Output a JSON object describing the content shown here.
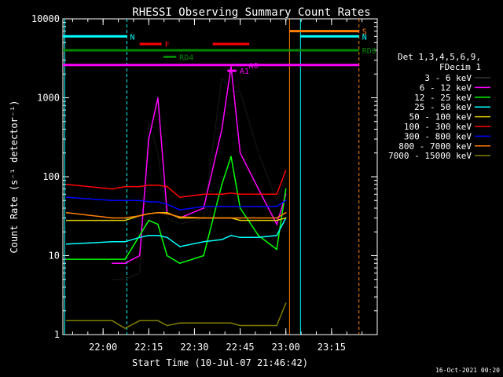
{
  "chart_data": {
    "type": "line",
    "title": "RHESSI Observing Summary Count Rates",
    "xlabel": "Start Time (10-Jul-07 21:46:42)",
    "ylabel": "Count Rate (s⁻¹ detector⁻¹)",
    "y_scale": "log",
    "ylim": [
      1,
      10000
    ],
    "xlim_minutes": [
      21.78,
      23.5
    ],
    "x_ticks": [
      "22:00",
      "22:15",
      "22:30",
      "22:45",
      "23:00",
      "23:15"
    ],
    "y_ticks": [
      "1",
      "10",
      "100",
      "1000",
      "10000"
    ],
    "footer": "16-Oct-2021 00:20",
    "legend_header": [
      "Det 1,3,4,5,6,9,",
      "FDecim 1"
    ],
    "colors": {
      "background": "#000000",
      "axes": "#ffffff",
      "attenuator": "#ff7f00",
      "night": "#00ffff",
      "saa": "#00ffff",
      "flare": "#ff0000",
      "rd_green": "#008800",
      "attenuator_label": "#ff00ff"
    },
    "series": [
      {
        "name": "3 - 6 keV",
        "color": "#000000",
        "points": [
          [
            22.05,
            5
          ],
          [
            22.12,
            5
          ],
          [
            22.2,
            6
          ],
          [
            22.25,
            500
          ],
          [
            22.3,
            200
          ],
          [
            22.35,
            30
          ],
          [
            22.42,
            25
          ],
          [
            22.55,
            30
          ],
          [
            22.65,
            1800
          ],
          [
            22.7,
            1200
          ],
          [
            22.75,
            1200
          ],
          [
            22.85,
            200
          ],
          [
            22.95,
            50
          ],
          [
            23.0,
            100
          ]
        ]
      },
      {
        "name": "6 - 12 keV",
        "color": "#ff00ff",
        "points": [
          [
            22.05,
            8
          ],
          [
            22.12,
            8
          ],
          [
            22.2,
            10
          ],
          [
            22.25,
            300
          ],
          [
            22.3,
            1000
          ],
          [
            22.35,
            35
          ],
          [
            22.42,
            30
          ],
          [
            22.55,
            40
          ],
          [
            22.65,
            400
          ],
          [
            22.7,
            2500
          ],
          [
            22.75,
            200
          ],
          [
            22.85,
            70
          ],
          [
            22.95,
            25
          ],
          [
            23.0,
            60
          ]
        ]
      },
      {
        "name": "12 - 25 keV",
        "color": "#00ff00",
        "points": [
          [
            21.8,
            9
          ],
          [
            22.05,
            9
          ],
          [
            22.12,
            9
          ],
          [
            22.2,
            18
          ],
          [
            22.25,
            28
          ],
          [
            22.3,
            25
          ],
          [
            22.35,
            10
          ],
          [
            22.42,
            8
          ],
          [
            22.55,
            10
          ],
          [
            22.65,
            80
          ],
          [
            22.7,
            180
          ],
          [
            22.75,
            40
          ],
          [
            22.85,
            18
          ],
          [
            22.95,
            12
          ],
          [
            23.0,
            70
          ]
        ]
      },
      {
        "name": "25 - 50 keV",
        "color": "#00ffff",
        "points": [
          [
            21.8,
            14
          ],
          [
            22.05,
            15
          ],
          [
            22.12,
            15
          ],
          [
            22.2,
            17
          ],
          [
            22.25,
            18
          ],
          [
            22.3,
            18
          ],
          [
            22.35,
            17
          ],
          [
            22.42,
            13
          ],
          [
            22.55,
            15
          ],
          [
            22.65,
            16
          ],
          [
            22.7,
            18
          ],
          [
            22.75,
            17
          ],
          [
            22.85,
            17
          ],
          [
            22.95,
            18
          ],
          [
            23.0,
            30
          ]
        ]
      },
      {
        "name": "50 - 100 keV",
        "color": "#ddcc00",
        "points": [
          [
            21.8,
            28
          ],
          [
            22.05,
            28
          ],
          [
            22.12,
            28
          ],
          [
            22.2,
            32
          ],
          [
            22.25,
            34
          ],
          [
            22.3,
            35
          ],
          [
            22.35,
            35
          ],
          [
            22.42,
            30
          ],
          [
            22.55,
            30
          ],
          [
            22.65,
            30
          ],
          [
            22.7,
            30
          ],
          [
            22.75,
            28
          ],
          [
            22.85,
            28
          ],
          [
            22.95,
            28
          ],
          [
            23.0,
            30
          ]
        ]
      },
      {
        "name": "100 - 300 keV",
        "color": "#ff0000",
        "points": [
          [
            21.8,
            80
          ],
          [
            22.05,
            70
          ],
          [
            22.12,
            75
          ],
          [
            22.2,
            75
          ],
          [
            22.25,
            78
          ],
          [
            22.3,
            78
          ],
          [
            22.35,
            75
          ],
          [
            22.42,
            55
          ],
          [
            22.55,
            60
          ],
          [
            22.65,
            60
          ],
          [
            22.7,
            62
          ],
          [
            22.75,
            60
          ],
          [
            22.85,
            60
          ],
          [
            22.95,
            60
          ],
          [
            23.0,
            120
          ]
        ]
      },
      {
        "name": "300 - 800 keV",
        "color": "#0000ff",
        "points": [
          [
            21.8,
            55
          ],
          [
            22.05,
            50
          ],
          [
            22.12,
            50
          ],
          [
            22.2,
            50
          ],
          [
            22.25,
            48
          ],
          [
            22.3,
            48
          ],
          [
            22.35,
            45
          ],
          [
            22.42,
            38
          ],
          [
            22.55,
            42
          ],
          [
            22.65,
            42
          ],
          [
            22.7,
            42
          ],
          [
            22.75,
            42
          ],
          [
            22.85,
            42
          ],
          [
            22.95,
            42
          ],
          [
            23.0,
            50
          ]
        ]
      },
      {
        "name": "800 - 7000 keV",
        "color": "#ff7f00",
        "points": [
          [
            21.8,
            35
          ],
          [
            22.05,
            30
          ],
          [
            22.12,
            30
          ],
          [
            22.2,
            32
          ],
          [
            22.25,
            34
          ],
          [
            22.3,
            35
          ],
          [
            22.35,
            34
          ],
          [
            22.42,
            31
          ],
          [
            22.55,
            30
          ],
          [
            22.65,
            30
          ],
          [
            22.7,
            30
          ],
          [
            22.75,
            30
          ],
          [
            22.85,
            30
          ],
          [
            22.95,
            30
          ],
          [
            23.0,
            35
          ]
        ]
      },
      {
        "name": "7000 - 15000 keV",
        "color": "#808000",
        "points": [
          [
            21.8,
            1.5
          ],
          [
            22.05,
            1.5
          ],
          [
            22.12,
            1.2
          ],
          [
            22.2,
            1.5
          ],
          [
            22.25,
            1.5
          ],
          [
            22.3,
            1.5
          ],
          [
            22.35,
            1.3
          ],
          [
            22.42,
            1.4
          ],
          [
            22.55,
            1.4
          ],
          [
            22.65,
            1.4
          ],
          [
            22.7,
            1.4
          ],
          [
            22.75,
            1.3
          ],
          [
            22.85,
            1.3
          ],
          [
            22.95,
            1.3
          ],
          [
            23.0,
            2.5
          ]
        ]
      }
    ],
    "state_bars": [
      {
        "label": "N",
        "color": "#00ffff",
        "level": 6000,
        "segments": [
          [
            21.78,
            22.13
          ]
        ]
      },
      {
        "label": "N",
        "color": "#00ffff",
        "level": 6000,
        "segments": [
          [
            23.08,
            23.4
          ]
        ]
      },
      {
        "label": "S",
        "color": "#ff7f00",
        "level": 7000,
        "segments": [
          [
            23.02,
            23.4
          ]
        ]
      },
      {
        "label": "F",
        "color": "#ff0000",
        "level": 4800,
        "segments": [
          [
            22.2,
            22.32
          ],
          [
            22.6,
            22.8
          ]
        ]
      },
      {
        "label": "RD0",
        "color": "#008800",
        "level": 4000,
        "segments": [
          [
            21.78,
            23.4
          ]
        ]
      },
      {
        "label": "RD4",
        "color": "#008800",
        "level": 3300,
        "segments": [
          [
            22.33,
            22.4
          ]
        ]
      },
      {
        "label": "",
        "color": "#ff00ff",
        "level": 2600,
        "segments": [
          [
            21.78,
            23.4
          ]
        ]
      },
      {
        "label": "A1",
        "color": "#ff00ff",
        "level": 2200,
        "segments": [
          [
            22.68,
            22.73
          ]
        ]
      },
      {
        "label": "A0",
        "color": "#ff00ff",
        "level": 2600,
        "segments": [
          [
            22.73,
            22.78
          ]
        ]
      }
    ],
    "vlines": [
      {
        "label": "night_start",
        "color": "#00ffff",
        "x": 21.79,
        "style": "solid"
      },
      {
        "label": "night_end",
        "color": "#00ffff",
        "x": 22.13,
        "style": "dashed"
      },
      {
        "label": "saa_start",
        "color": "#ff7f00",
        "x": 23.02,
        "style": "solid"
      },
      {
        "label": "saa_end",
        "color": "#00ffff",
        "x": 23.08,
        "style": "solid"
      },
      {
        "label": "end",
        "color": "#ff7f00",
        "x": 23.4,
        "style": "dashed"
      }
    ]
  }
}
